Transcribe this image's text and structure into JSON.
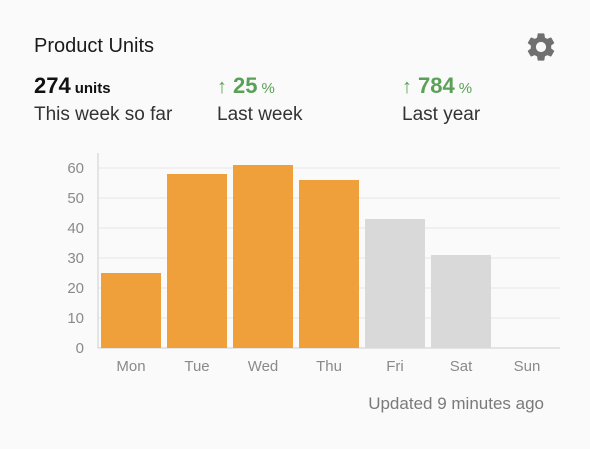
{
  "widget": {
    "title": "Product Units"
  },
  "stats": [
    {
      "value": "274",
      "unit": "units",
      "label": "This week so far"
    },
    {
      "value": "25",
      "unit": "%",
      "label": "Last week",
      "trend": "up"
    },
    {
      "value": "784",
      "unit": "%",
      "label": "Last year",
      "trend": "up"
    }
  ],
  "footer": {
    "updated_text": "Updated 9 minutes ago"
  },
  "colors": {
    "current": "#f0a03a",
    "future": "#d9d9d9",
    "trend_up": "#5aa057",
    "gear": "#707070"
  },
  "icons": {
    "settings": "gear-icon",
    "trend": "arrow-up-icon"
  },
  "chart_data": {
    "type": "bar",
    "categories": [
      "Mon",
      "Tue",
      "Wed",
      "Thu",
      "Fri",
      "Sat",
      "Sun"
    ],
    "values": [
      25,
      58,
      61,
      56,
      43,
      31,
      0
    ],
    "status": [
      "current",
      "current",
      "current",
      "current",
      "future",
      "future",
      "future"
    ],
    "yticks": [
      0,
      10,
      20,
      30,
      40,
      50,
      60
    ],
    "ylim": [
      0,
      65
    ],
    "title": "",
    "xlabel": "",
    "ylabel": "",
    "grid": true,
    "legend": "none"
  }
}
